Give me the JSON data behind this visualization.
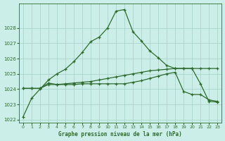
{
  "title": "Graphe pression niveau de la mer (hPa)",
  "bg_color": "#cceee8",
  "line_color": "#2d6b2d",
  "grid_color": "#aad4cc",
  "xlim": [
    -0.5,
    23.5
  ],
  "ylim": [
    1021.8,
    1029.6
  ],
  "yticks": [
    1022,
    1023,
    1024,
    1025,
    1026,
    1027,
    1028
  ],
  "xticks": [
    0,
    1,
    2,
    3,
    4,
    5,
    6,
    7,
    8,
    9,
    10,
    11,
    12,
    13,
    14,
    15,
    16,
    17,
    18,
    19,
    20,
    21,
    22,
    23
  ],
  "hours": [
    0,
    1,
    2,
    3,
    4,
    5,
    6,
    7,
    8,
    9,
    10,
    11,
    12,
    13,
    14,
    15,
    16,
    17,
    18,
    19,
    20,
    21,
    22,
    23
  ],
  "pressure_main": [
    1022.2,
    1023.4,
    1024.0,
    1024.6,
    1025.0,
    1025.3,
    1025.8,
    1026.4,
    1027.1,
    1027.4,
    1028.0,
    1029.1,
    1029.2,
    1027.75,
    1027.15,
    1026.5,
    1026.05,
    1025.55,
    1025.35,
    1025.35,
    1025.35,
    1024.35,
    1023.2,
    1023.15
  ],
  "pressure_line2": [
    1024.05,
    1024.05,
    1024.05,
    1024.4,
    1024.3,
    1024.3,
    1024.3,
    1024.35,
    1024.35,
    1024.35,
    1024.35,
    1024.35,
    1024.35,
    1024.45,
    1024.55,
    1024.7,
    1024.85,
    1025.0,
    1025.1,
    1023.85,
    1023.65,
    1023.65,
    1023.3,
    1023.2
  ],
  "pressure_line3": [
    1024.05,
    1024.05,
    1024.05,
    1024.3,
    1024.3,
    1024.35,
    1024.4,
    1024.45,
    1024.5,
    1024.6,
    1024.7,
    1024.8,
    1024.9,
    1025.0,
    1025.1,
    1025.2,
    1025.25,
    1025.3,
    1025.35,
    1025.35,
    1025.35,
    1025.35,
    1025.35,
    1025.35
  ]
}
